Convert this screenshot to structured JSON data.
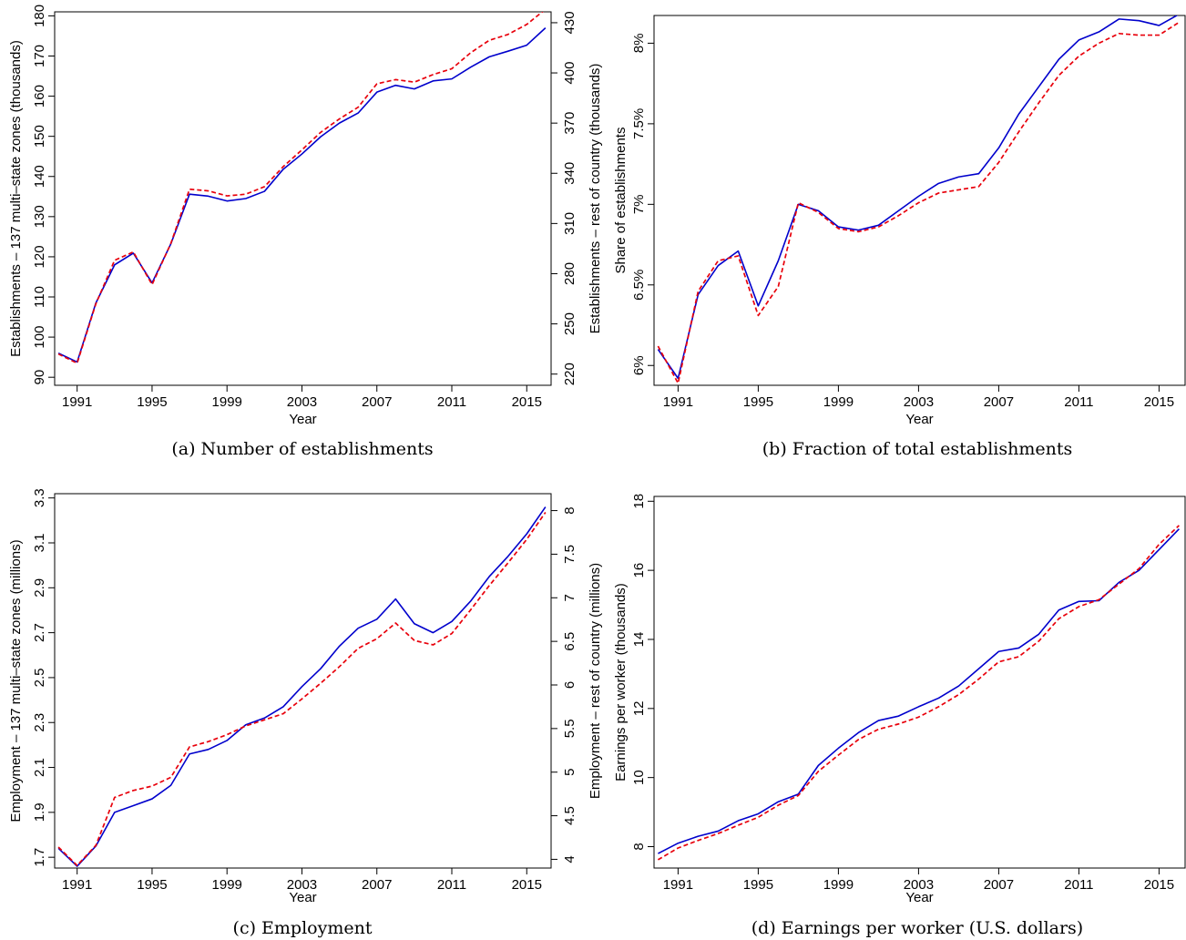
{
  "colors": {
    "solid_series": "#0000cc",
    "dashed_series": "#e8000b",
    "axis": "#000000"
  },
  "chart_data": [
    {
      "id": "a",
      "type": "line",
      "caption": "(a) Number of establishments",
      "xlabel": "Year",
      "ylabel": "Establishments – 137 multi–state zones (thousands)",
      "y2label": "Establishments – rest of country (thousands)",
      "xlim": [
        1989.8,
        2016.3
      ],
      "ylim": [
        88,
        181
      ],
      "y2lim": [
        213.3,
        436.5
      ],
      "xticks": [
        1991,
        1995,
        1999,
        2003,
        2007,
        2011,
        2015
      ],
      "xtick_labels": [
        "1991",
        "1995",
        "1999",
        "2003",
        "2007",
        "2011",
        "2015"
      ],
      "yticks": [
        90,
        100,
        110,
        120,
        130,
        140,
        150,
        160,
        170,
        180
      ],
      "ytick_labels": [
        "90",
        "100",
        "110",
        "120",
        "130",
        "140",
        "150",
        "160",
        "170",
        "180"
      ],
      "y2ticks": [
        220,
        250,
        280,
        310,
        340,
        370,
        400,
        430
      ],
      "y2tick_labels": [
        "220",
        "250",
        "280",
        "310",
        "340",
        "370",
        "400",
        "430"
      ],
      "x": [
        1990,
        1991,
        1992,
        1993,
        1994,
        1995,
        1996,
        1997,
        1998,
        1999,
        2000,
        2001,
        2002,
        2003,
        2004,
        2005,
        2006,
        2007,
        2008,
        2009,
        2010,
        2011,
        2012,
        2013,
        2014,
        2015,
        2016
      ],
      "series": [
        {
          "axis": "left",
          "style": "solid",
          "values": [
            96.0,
            93.8,
            108.5,
            118.0,
            120.9,
            113.5,
            123.2,
            135.6,
            135.1,
            133.9,
            134.5,
            136.3,
            141.8,
            145.6,
            149.9,
            153.3,
            155.8,
            161.0,
            162.7,
            161.8,
            163.8,
            164.3,
            167.2,
            169.8,
            171.2,
            172.7,
            177.0
          ]
        },
        {
          "axis": "right",
          "style": "dashed",
          "values": [
            232.0,
            226.5,
            262.0,
            288.0,
            293.0,
            273.5,
            298.0,
            330.5,
            329.5,
            326.5,
            327.5,
            332.0,
            344.0,
            354.0,
            364.5,
            372.5,
            379.5,
            393.5,
            396.0,
            394.5,
            399.0,
            402.5,
            412.0,
            419.5,
            423.0,
            429.0,
            438.0
          ]
        }
      ]
    },
    {
      "id": "b",
      "type": "line",
      "caption": "(b) Fraction of total establishments",
      "xlabel": "Year",
      "ylabel": "Share of establishments",
      "xlim": [
        1989.8,
        2016.3
      ],
      "ylim": [
        5.877,
        8.172
      ],
      "yticks": [
        6.0,
        6.5,
        7.0,
        7.5,
        8.0
      ],
      "ytick_labels": [
        "6%",
        "6.5%",
        "7%",
        "7.5%",
        "8%"
      ],
      "xticks": [
        1991,
        1995,
        1999,
        2003,
        2007,
        2011,
        2015
      ],
      "xtick_labels": [
        "1991",
        "1995",
        "1999",
        "2003",
        "2007",
        "2011",
        "2015"
      ],
      "x": [
        1990,
        1991,
        1992,
        1993,
        1994,
        1995,
        1996,
        1997,
        1998,
        1999,
        2000,
        2001,
        2002,
        2003,
        2004,
        2005,
        2006,
        2007,
        2008,
        2009,
        2010,
        2011,
        2012,
        2013,
        2014,
        2015,
        2016
      ],
      "series": [
        {
          "axis": "left",
          "style": "solid",
          "values": [
            6.1,
            5.92,
            6.44,
            6.62,
            6.71,
            6.37,
            6.65,
            7.0,
            6.96,
            6.86,
            6.84,
            6.87,
            6.96,
            7.05,
            7.13,
            7.17,
            7.19,
            7.35,
            7.56,
            7.73,
            7.9,
            8.02,
            8.07,
            8.15,
            8.14,
            8.11,
            8.18
          ]
        },
        {
          "axis": "left",
          "style": "dashed",
          "values": [
            6.12,
            5.89,
            6.46,
            6.65,
            6.68,
            6.31,
            6.49,
            7.01,
            6.95,
            6.85,
            6.83,
            6.86,
            6.93,
            7.01,
            7.07,
            7.09,
            7.11,
            7.26,
            7.45,
            7.63,
            7.8,
            7.92,
            8.0,
            8.06,
            8.05,
            8.05,
            8.13
          ]
        }
      ]
    },
    {
      "id": "c",
      "type": "line",
      "caption": "(c) Employment",
      "xlabel": "Year",
      "ylabel": "Employment – 137 multi–state zones (millions)",
      "y2label": "Employment – rest of country (millions)",
      "xlim": [
        1989.8,
        2016.3
      ],
      "ylim": [
        1.652,
        3.319
      ],
      "y2lim": [
        3.9,
        8.194
      ],
      "xticks": [
        1991,
        1995,
        1999,
        2003,
        2007,
        2011,
        2015
      ],
      "xtick_labels": [
        "1991",
        "1995",
        "1999",
        "2003",
        "2007",
        "2011",
        "2015"
      ],
      "yticks": [
        1.7,
        1.9,
        2.1,
        2.3,
        2.5,
        2.7,
        2.9,
        3.1,
        3.3
      ],
      "ytick_labels": [
        "1.7",
        "1.9",
        "2.1",
        "2.3",
        "2.5",
        "2.7",
        "2.9",
        "3.1",
        "3.3"
      ],
      "y2ticks": [
        4,
        4.5,
        5,
        5.5,
        6,
        6.5,
        7,
        7.5,
        8
      ],
      "y2tick_labels": [
        "4",
        "4.5",
        "5",
        "5.5",
        "6",
        "6.5",
        "7",
        "7.5",
        "8"
      ],
      "x": [
        1990,
        1991,
        1992,
        1993,
        1994,
        1995,
        1996,
        1997,
        1998,
        1999,
        2000,
        2001,
        2002,
        2003,
        2004,
        2005,
        2006,
        2007,
        2008,
        2009,
        2010,
        2011,
        2012,
        2013,
        2014,
        2015,
        2016
      ],
      "series": [
        {
          "axis": "left",
          "style": "solid",
          "values": [
            1.74,
            1.66,
            1.75,
            1.9,
            1.93,
            1.96,
            2.02,
            2.16,
            2.18,
            2.22,
            2.29,
            2.32,
            2.37,
            2.46,
            2.54,
            2.64,
            2.72,
            2.76,
            2.85,
            2.74,
            2.7,
            2.75,
            2.84,
            2.95,
            3.04,
            3.14,
            3.26
          ]
        },
        {
          "axis": "right",
          "style": "dashed",
          "values": [
            4.14,
            3.93,
            4.16,
            4.71,
            4.79,
            4.84,
            4.94,
            5.29,
            5.35,
            5.43,
            5.53,
            5.6,
            5.67,
            5.84,
            6.02,
            6.21,
            6.42,
            6.53,
            6.71,
            6.51,
            6.46,
            6.59,
            6.86,
            7.14,
            7.4,
            7.67,
            7.98
          ]
        }
      ]
    },
    {
      "id": "d",
      "type": "line",
      "caption": "(d) Earnings per worker (U.S. dollars)",
      "xlabel": "Year",
      "ylabel": "Earnings per worker (thousands)",
      "xlim": [
        1989.8,
        2016.3
      ],
      "ylim": [
        7.38,
        18.14
      ],
      "yticks": [
        8,
        10,
        12,
        14,
        16,
        18
      ],
      "ytick_labels": [
        "8",
        "10",
        "12",
        "14",
        "16",
        "18"
      ],
      "xticks": [
        1991,
        1995,
        1999,
        2003,
        2007,
        2011,
        2015
      ],
      "xtick_labels": [
        "1991",
        "1995",
        "1999",
        "2003",
        "2007",
        "2011",
        "2015"
      ],
      "x": [
        1990,
        1991,
        1992,
        1993,
        1994,
        1995,
        1996,
        1997,
        1998,
        1999,
        2000,
        2001,
        2002,
        2003,
        2004,
        2005,
        2006,
        2007,
        2008,
        2009,
        2010,
        2011,
        2012,
        2013,
        2014,
        2015,
        2016
      ],
      "series": [
        {
          "axis": "left",
          "style": "solid",
          "values": [
            7.8,
            8.1,
            8.3,
            8.45,
            8.75,
            8.95,
            9.3,
            9.52,
            10.35,
            10.85,
            11.3,
            11.65,
            11.78,
            12.05,
            12.3,
            12.65,
            13.15,
            13.65,
            13.75,
            14.15,
            14.85,
            15.1,
            15.12,
            15.65,
            16.0,
            16.6,
            17.2
          ]
        },
        {
          "axis": "left",
          "style": "dashed",
          "values": [
            7.62,
            7.96,
            8.18,
            8.38,
            8.62,
            8.85,
            9.2,
            9.48,
            10.18,
            10.65,
            11.1,
            11.4,
            11.55,
            11.75,
            12.05,
            12.4,
            12.85,
            13.35,
            13.5,
            13.95,
            14.6,
            14.95,
            15.15,
            15.6,
            16.05,
            16.75,
            17.3
          ]
        }
      ]
    }
  ]
}
